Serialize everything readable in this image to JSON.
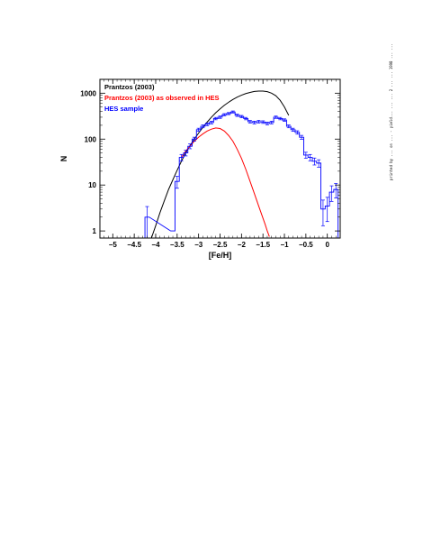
{
  "margin_note": "printed by ... on ... - yield... ... ... 2 ... ... 1998 ... ...",
  "chart_data": {
    "type": "line",
    "xlabel": "[Fe/H]",
    "ylabel": "N",
    "xlim": [
      -5.3,
      0.3
    ],
    "ylim": [
      0.7,
      2000
    ],
    "yscale": "log",
    "xticks": [
      -5,
      -4.5,
      -4,
      -3.5,
      -3,
      -2.5,
      -2,
      -1.5,
      -1,
      -0.5,
      0
    ],
    "xtick_labels": [
      "−5",
      "−4.5",
      "−4",
      "−3.5",
      "−3",
      "−2.5",
      "−2",
      "−1.5",
      "−1",
      "−0.5",
      "0"
    ],
    "yticks": [
      1,
      10,
      100,
      1000
    ],
    "ytick_labels": [
      "1",
      "10",
      "100",
      "1000"
    ],
    "legend": [
      {
        "label": "Prantzos (2003)",
        "color": "#000000"
      },
      {
        "label": "Prantzos (2003) as observed in HES",
        "color": "#ff0000"
      },
      {
        "label": "HES sample",
        "color": "#0000ff"
      }
    ],
    "legend_position": "top-left",
    "series": [
      {
        "name": "Prantzos (2003)",
        "color": "#000000",
        "style": "line",
        "x": [
          -4.1,
          -4.0,
          -3.9,
          -3.8,
          -3.7,
          -3.6,
          -3.5,
          -3.4,
          -3.3,
          -3.2,
          -3.1,
          -3.0,
          -2.9,
          -2.8,
          -2.7,
          -2.6,
          -2.5,
          -2.4,
          -2.3,
          -2.2,
          -2.1,
          -2.0,
          -1.9,
          -1.8,
          -1.7,
          -1.6,
          -1.5,
          -1.4,
          -1.3,
          -1.2,
          -1.1,
          -1.0,
          -0.9
        ],
        "y": [
          0.7,
          1.3,
          2.5,
          4.5,
          8,
          13,
          21,
          33,
          50,
          72,
          100,
          135,
          180,
          235,
          300,
          375,
          455,
          545,
          635,
          730,
          820,
          905,
          980,
          1040,
          1090,
          1110,
          1110,
          1080,
          1000,
          880,
          700,
          500,
          330
        ]
      },
      {
        "name": "Prantzos (2003) as observed in HES",
        "color": "#ff0000",
        "style": "line",
        "x": [
          -3.4,
          -3.3,
          -3.2,
          -3.1,
          -3.0,
          -2.9,
          -2.8,
          -2.7,
          -2.6,
          -2.5,
          -2.4,
          -2.3,
          -2.2,
          -2.1,
          -2.0,
          -1.9,
          -1.8,
          -1.7,
          -1.6,
          -1.5,
          -1.45,
          -1.4,
          -1.35
        ],
        "y": [
          40,
          55,
          70,
          90,
          110,
          130,
          150,
          165,
          175,
          170,
          150,
          120,
          90,
          60,
          38,
          22,
          12,
          6.5,
          3.5,
          1.9,
          1.4,
          1.0,
          0.75
        ]
      },
      {
        "name": "HES sample",
        "color": "#0000ff",
        "style": "step",
        "bin_width": 0.1,
        "x": [
          -4.2,
          -3.6,
          -3.5,
          -3.4,
          -3.3,
          -3.2,
          -3.1,
          -3.0,
          -2.9,
          -2.8,
          -2.7,
          -2.6,
          -2.5,
          -2.4,
          -2.3,
          -2.2,
          -2.1,
          -2.0,
          -1.9,
          -1.8,
          -1.7,
          -1.6,
          -1.5,
          -1.4,
          -1.3,
          -1.2,
          -1.1,
          -1.0,
          -0.9,
          -0.8,
          -0.7,
          -0.6,
          -0.5,
          -0.4,
          -0.3,
          -0.2,
          -0.1,
          0.0,
          0.1,
          0.2
        ],
        "y": [
          2,
          1,
          12,
          40,
          50,
          70,
          100,
          160,
          190,
          210,
          230,
          280,
          300,
          340,
          360,
          390,
          330,
          310,
          280,
          240,
          230,
          240,
          235,
          220,
          230,
          300,
          280,
          260,
          190,
          160,
          140,
          110,
          45,
          40,
          33,
          30,
          3,
          3.5,
          7,
          8
        ],
        "yerr": [
          1.4,
          0,
          3.5,
          6.3,
          7,
          8.4,
          10,
          12.6,
          13.8,
          14.5,
          15.2,
          16.7,
          17.3,
          18.4,
          19,
          19.7,
          18.2,
          17.6,
          16.7,
          15.5,
          15.2,
          15.5,
          15.3,
          14.8,
          15.2,
          17.3,
          16.7,
          16.1,
          13.8,
          12.6,
          11.8,
          10.5,
          6.7,
          6.3,
          5.7,
          5.5,
          1.7,
          1.9,
          2.6,
          2.8
        ]
      }
    ]
  }
}
